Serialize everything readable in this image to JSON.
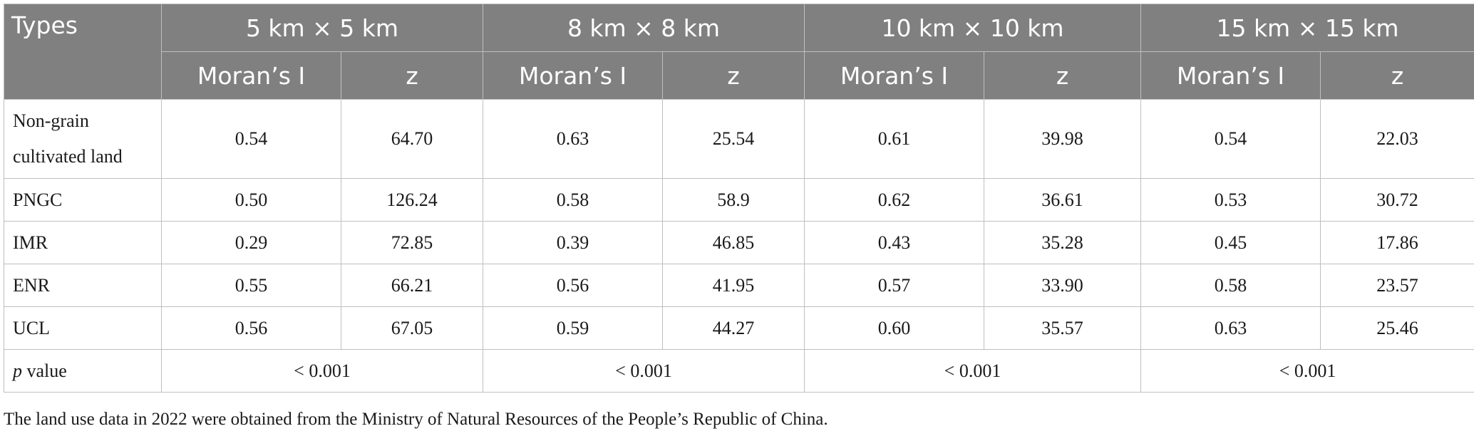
{
  "table": {
    "header": {
      "types": "Types",
      "groups": [
        "5 km × 5 km",
        "8 km × 8 km",
        "10 km × 10 km",
        "15 km × 15 km"
      ],
      "sub": {
        "morans": "Moran’s I",
        "z": "z"
      }
    },
    "rows": [
      {
        "label_line1": "Non-grain",
        "label_line2": "cultivated land",
        "values": [
          "0.54",
          "64.70",
          "0.63",
          "25.54",
          "0.61",
          "39.98",
          "0.54",
          "22.03"
        ]
      },
      {
        "label": "PNGC",
        "values": [
          "0.50",
          "126.24",
          "0.58",
          "58.9",
          "0.62",
          "36.61",
          "0.53",
          "30.72"
        ]
      },
      {
        "label": "IMR",
        "values": [
          "0.29",
          "72.85",
          "0.39",
          "46.85",
          "0.43",
          "35.28",
          "0.45",
          "17.86"
        ]
      },
      {
        "label": "ENR",
        "values": [
          "0.55",
          "66.21",
          "0.56",
          "41.95",
          "0.57",
          "33.90",
          "0.58",
          "23.57"
        ]
      },
      {
        "label": "UCL",
        "values": [
          "0.56",
          "67.05",
          "0.59",
          "44.27",
          "0.60",
          "35.57",
          "0.63",
          "25.46"
        ]
      }
    ],
    "pvalue": {
      "label_italic": "p",
      "label_rest": " value",
      "values": [
        "< 0.001",
        "< 0.001",
        "< 0.001",
        "< 0.001"
      ]
    }
  },
  "note": "The land use data in 2022 were obtained from the Ministry of Natural Resources of the People’s Republic of China."
}
